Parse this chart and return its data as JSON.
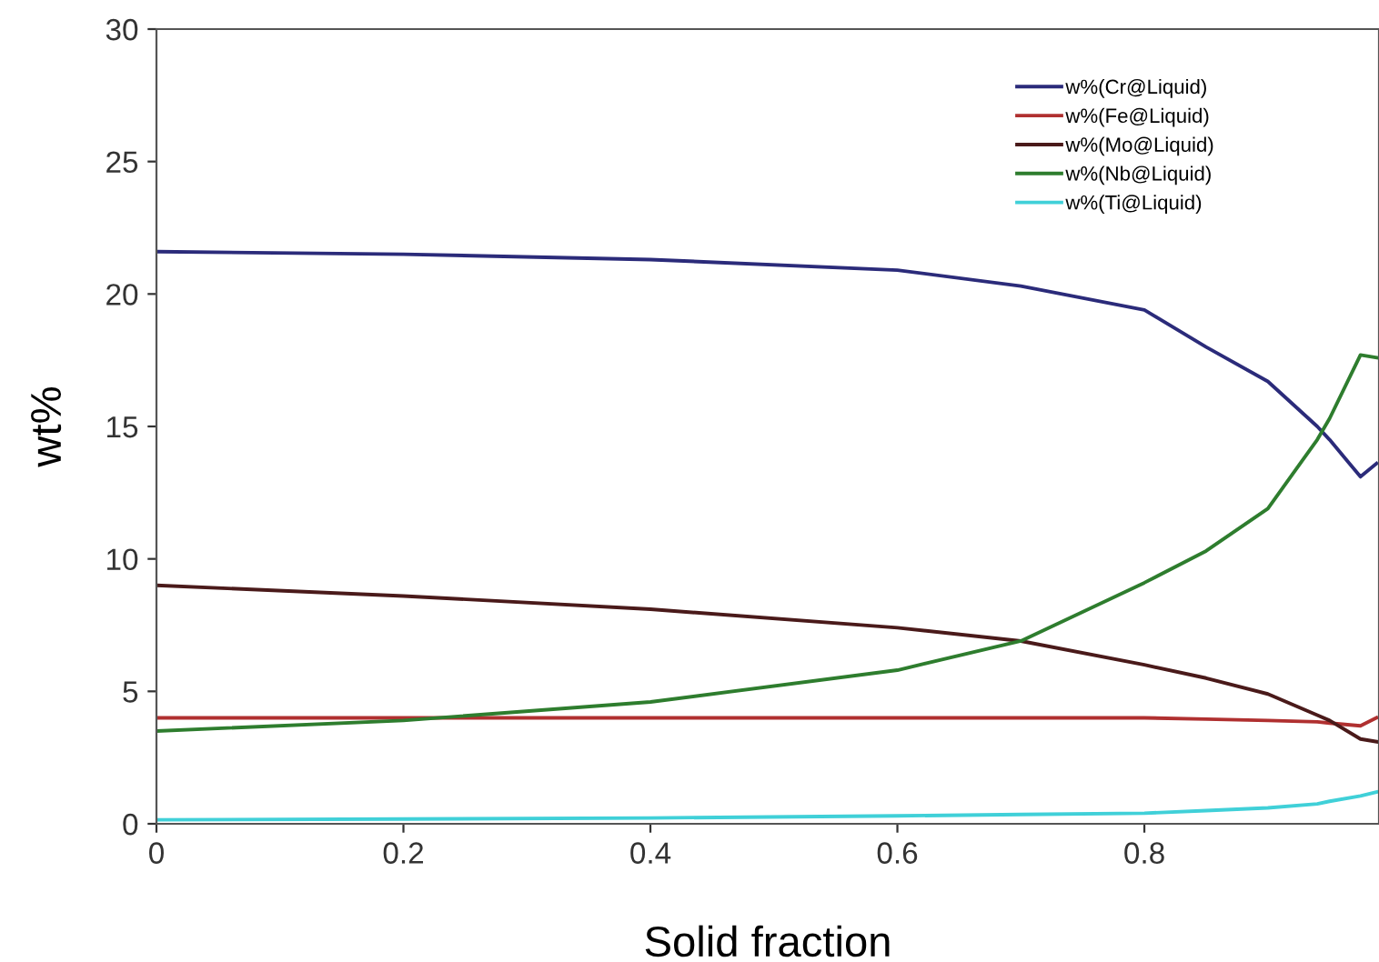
{
  "chart_data": {
    "type": "line",
    "xlabel": "Solid fraction",
    "ylabel": "wt%",
    "xlim": [
      0,
      0.99
    ],
    "ylim": [
      0,
      30
    ],
    "xticks": [
      0,
      0.2,
      0.4,
      0.6,
      0.8
    ],
    "yticks": [
      0,
      5,
      10,
      15,
      20,
      25,
      30
    ],
    "grid": false,
    "legend": "top right",
    "marker": "none",
    "line_style": "solid",
    "x": [
      0,
      0.2,
      0.4,
      0.6,
      0.7,
      0.8,
      0.85,
      0.9,
      0.94,
      0.95,
      0.975,
      0.988
    ],
    "series": [
      {
        "name": "w%(Cr@Liquid)",
        "color": "#2b2b7a",
        "values": [
          21.6,
          21.5,
          21.3,
          20.9,
          20.3,
          19.4,
          18.0,
          16.7,
          15.0,
          14.5,
          13.1,
          13.6
        ]
      },
      {
        "name": "w%(Fe@Liquid)",
        "color": "#b03030",
        "values": [
          4.0,
          4.0,
          4.0,
          4.0,
          4.0,
          4.0,
          3.95,
          3.9,
          3.85,
          3.8,
          3.7,
          4.0
        ]
      },
      {
        "name": "w%(Mo@Liquid)",
        "color": "#4a1a1a",
        "values": [
          9.0,
          8.6,
          8.1,
          7.4,
          6.9,
          6.0,
          5.5,
          4.9,
          4.1,
          3.9,
          3.2,
          3.1
        ]
      },
      {
        "name": "w%(Nb@Liquid)",
        "color": "#2e7d2e",
        "values": [
          3.5,
          3.9,
          4.6,
          5.8,
          6.9,
          9.1,
          10.3,
          11.9,
          14.5,
          15.3,
          17.7,
          17.6
        ]
      },
      {
        "name": "w%(Ti@Liquid)",
        "color": "#40d0d8",
        "values": [
          0.15,
          0.18,
          0.22,
          0.3,
          0.35,
          0.4,
          0.5,
          0.6,
          0.75,
          0.85,
          1.05,
          1.2
        ]
      }
    ]
  }
}
